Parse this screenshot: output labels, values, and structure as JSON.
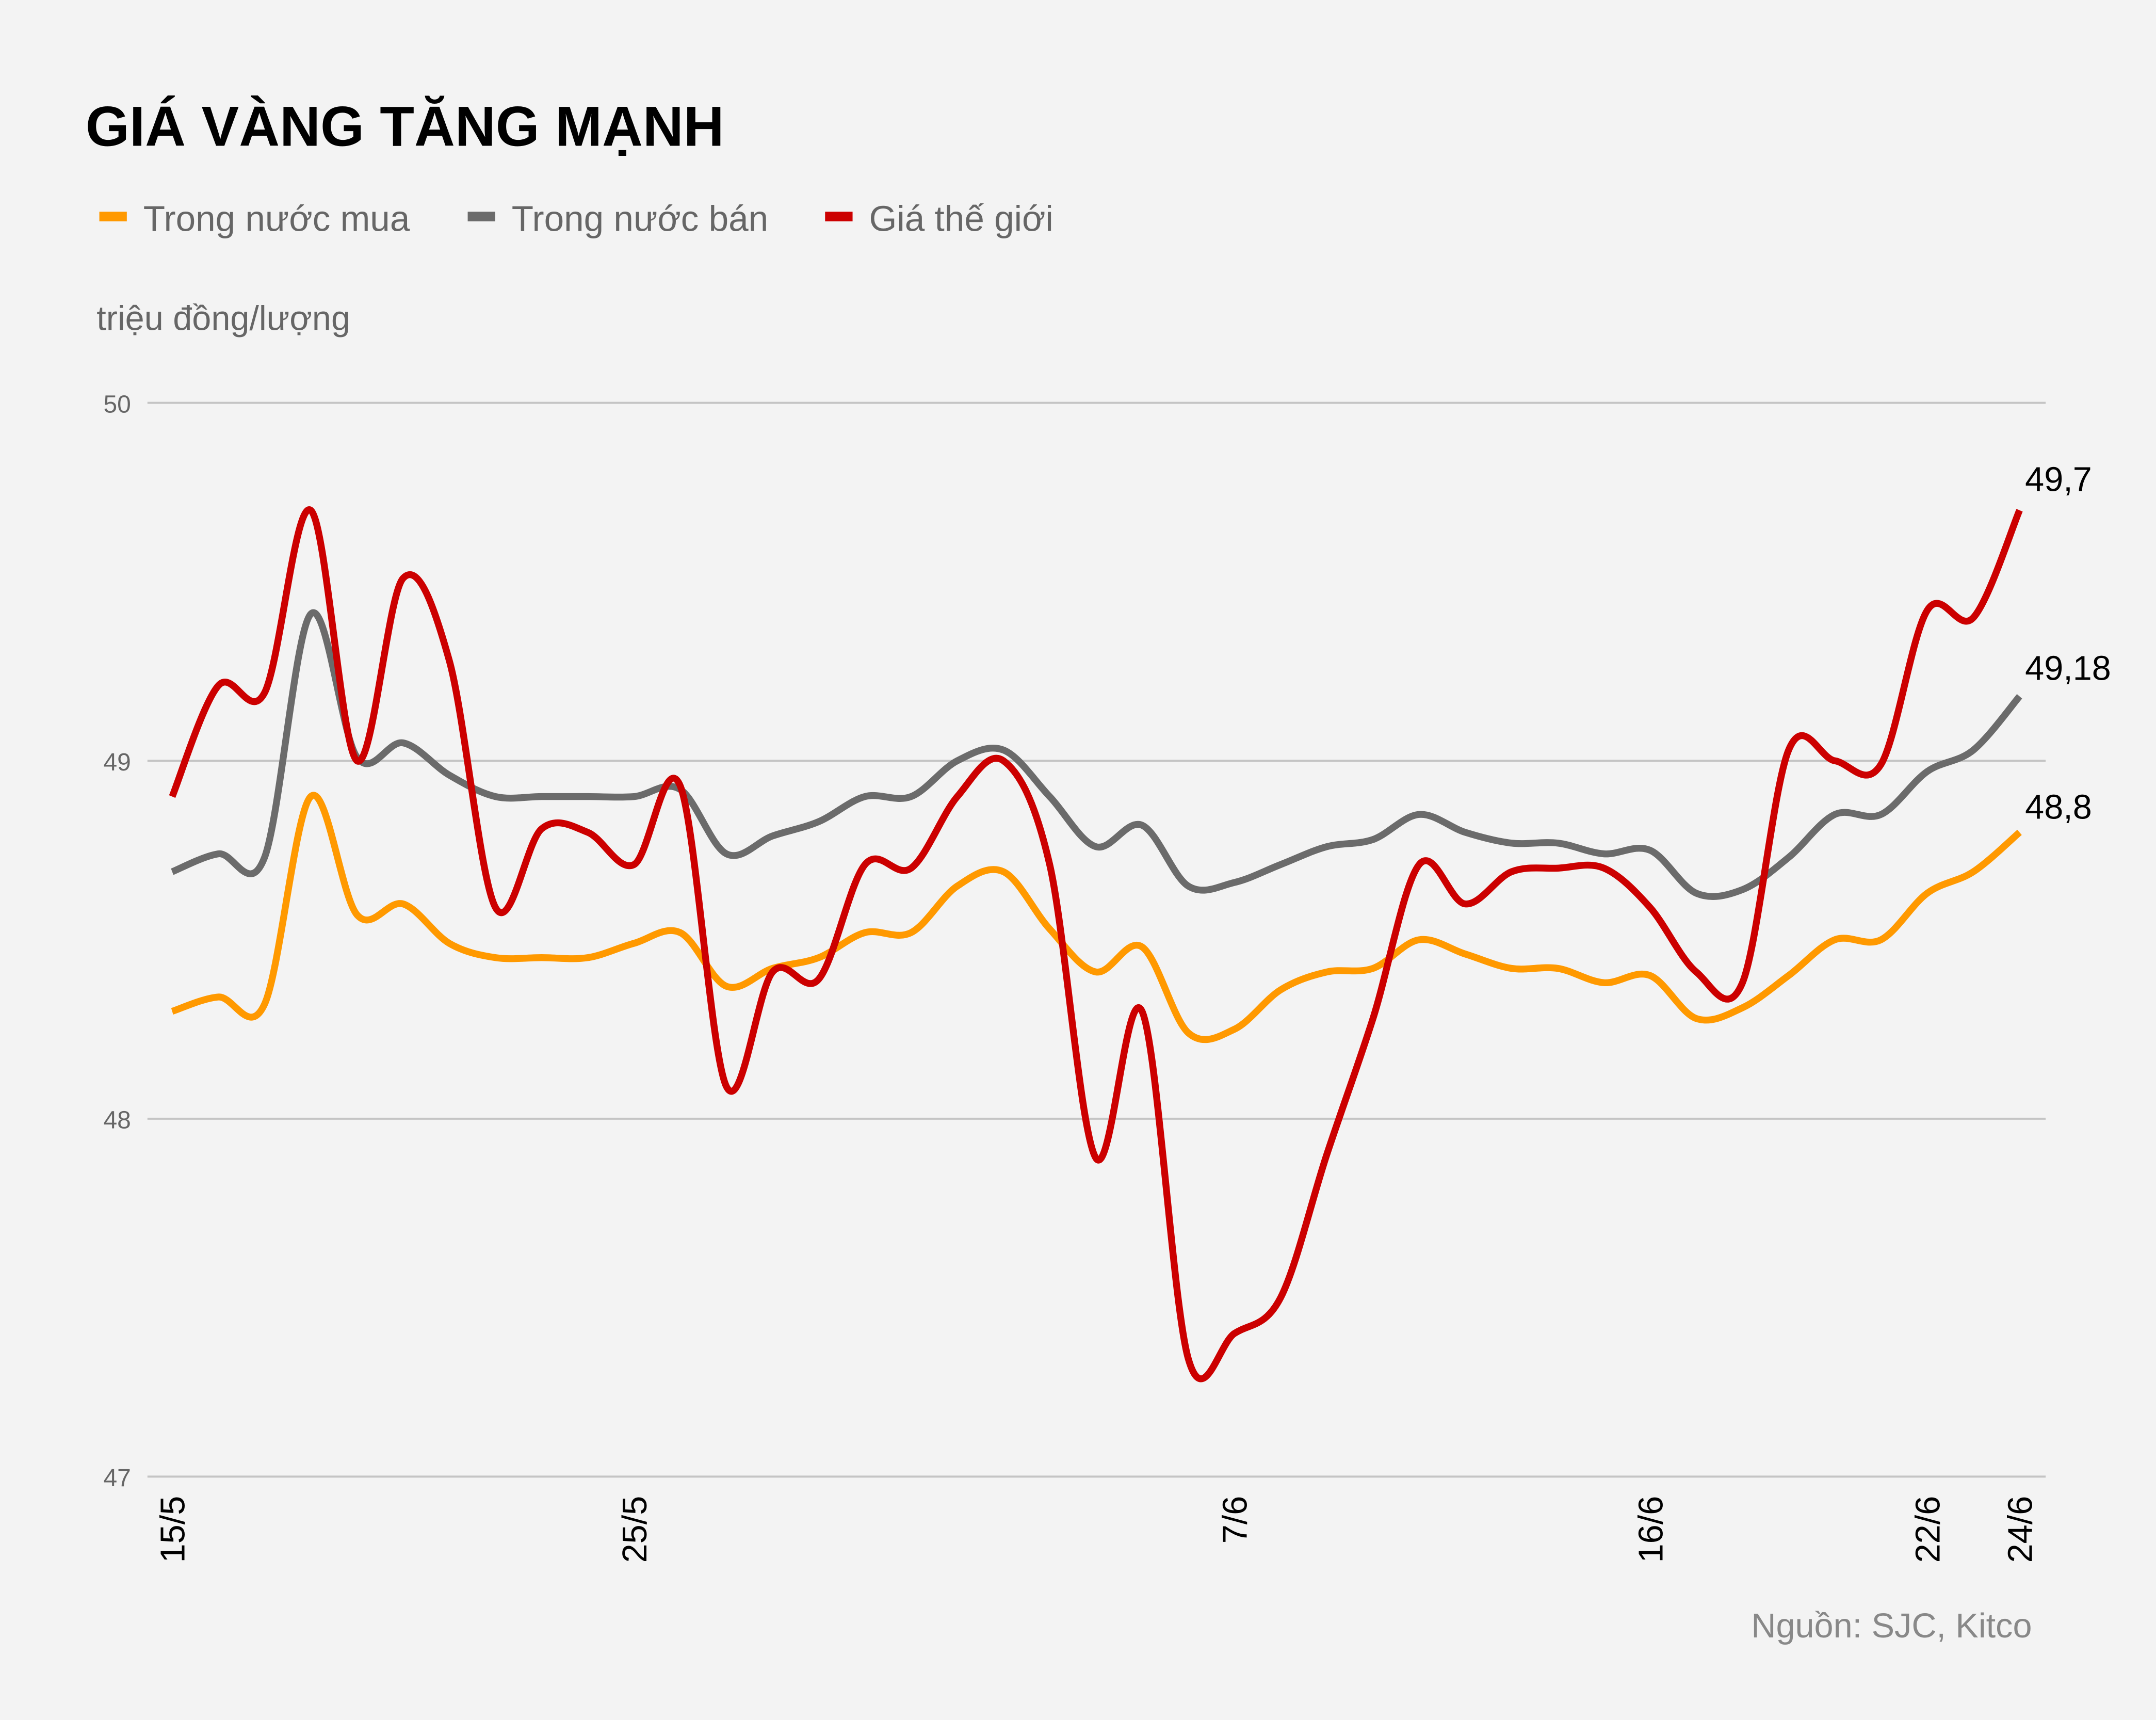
{
  "chart_data": {
    "type": "line",
    "title": "GIÁ VÀNG TĂNG MẠNH",
    "ylabel": "triệu đồng/lượng",
    "source": "Nguồn: SJC, Kitco",
    "ylim": [
      47,
      50
    ],
    "yticks": [
      "47",
      "48",
      "49",
      "50"
    ],
    "grid": true,
    "legend_placement": "top-left",
    "xticks": [
      "15/5",
      "25/5",
      "7/6",
      "16/6",
      "22/6",
      "24/6"
    ],
    "x": [
      "15/5",
      "16/5",
      "17/5",
      "18/5",
      "19/5",
      "20/5",
      "21/5",
      "22/5",
      "23/5",
      "24/5",
      "25/5",
      "26/5",
      "27/5",
      "28/5",
      "29/5",
      "30/5",
      "31/5",
      "1/6",
      "2/6",
      "3/6",
      "4/6",
      "5/6",
      "6/6",
      "7/6",
      "8/6",
      "9/6",
      "10/6",
      "11/6",
      "12/6",
      "13/6",
      "14/6",
      "15/6",
      "16/6",
      "17/6",
      "18/6",
      "19/6",
      "20/6",
      "21/6",
      "22/6",
      "23/6",
      "24/6"
    ],
    "series": [
      {
        "name": "Trong nước mua",
        "color": "#ff9900",
        "end_label": "48,8",
        "values": [
          48.3,
          48.34,
          48.32,
          48.9,
          48.57,
          48.6,
          48.49,
          48.45,
          48.45,
          48.45,
          48.49,
          48.52,
          48.37,
          48.42,
          48.45,
          48.52,
          48.52,
          48.65,
          48.69,
          48.53,
          48.41,
          48.48,
          48.24,
          48.25,
          48.36,
          48.41,
          48.42,
          48.5,
          48.46,
          48.42,
          48.42,
          48.38,
          48.4,
          48.28,
          48.31,
          48.4,
          48.5,
          48.5,
          48.63,
          48.69,
          48.8
        ]
      },
      {
        "name": "Trong nước bán",
        "color": "#6b6b6b",
        "end_label": "49,18",
        "values": [
          48.69,
          48.74,
          48.73,
          49.41,
          49.01,
          49.05,
          48.96,
          48.9,
          48.9,
          48.9,
          48.9,
          48.92,
          48.74,
          48.79,
          48.83,
          48.9,
          48.9,
          49.0,
          49.03,
          48.9,
          48.76,
          48.82,
          48.65,
          48.66,
          48.71,
          48.76,
          48.78,
          48.85,
          48.8,
          48.77,
          48.77,
          48.74,
          48.75,
          48.63,
          48.64,
          48.73,
          48.85,
          48.85,
          48.97,
          49.03,
          49.18
        ]
      },
      {
        "name": "Giá thế giới",
        "color": "#cc0000",
        "end_label": "49,7",
        "values": [
          48.9,
          49.21,
          49.19,
          49.7,
          49.0,
          49.51,
          49.28,
          48.59,
          48.81,
          48.8,
          48.71,
          48.93,
          48.09,
          48.41,
          48.39,
          48.71,
          48.7,
          48.9,
          49.0,
          48.71,
          47.89,
          48.3,
          47.33,
          47.4,
          47.5,
          47.9,
          48.28,
          48.71,
          48.6,
          48.69,
          48.7,
          48.7,
          48.59,
          48.41,
          48.38,
          49.03,
          49.0,
          48.99,
          49.42,
          49.4,
          49.7
        ]
      }
    ]
  }
}
